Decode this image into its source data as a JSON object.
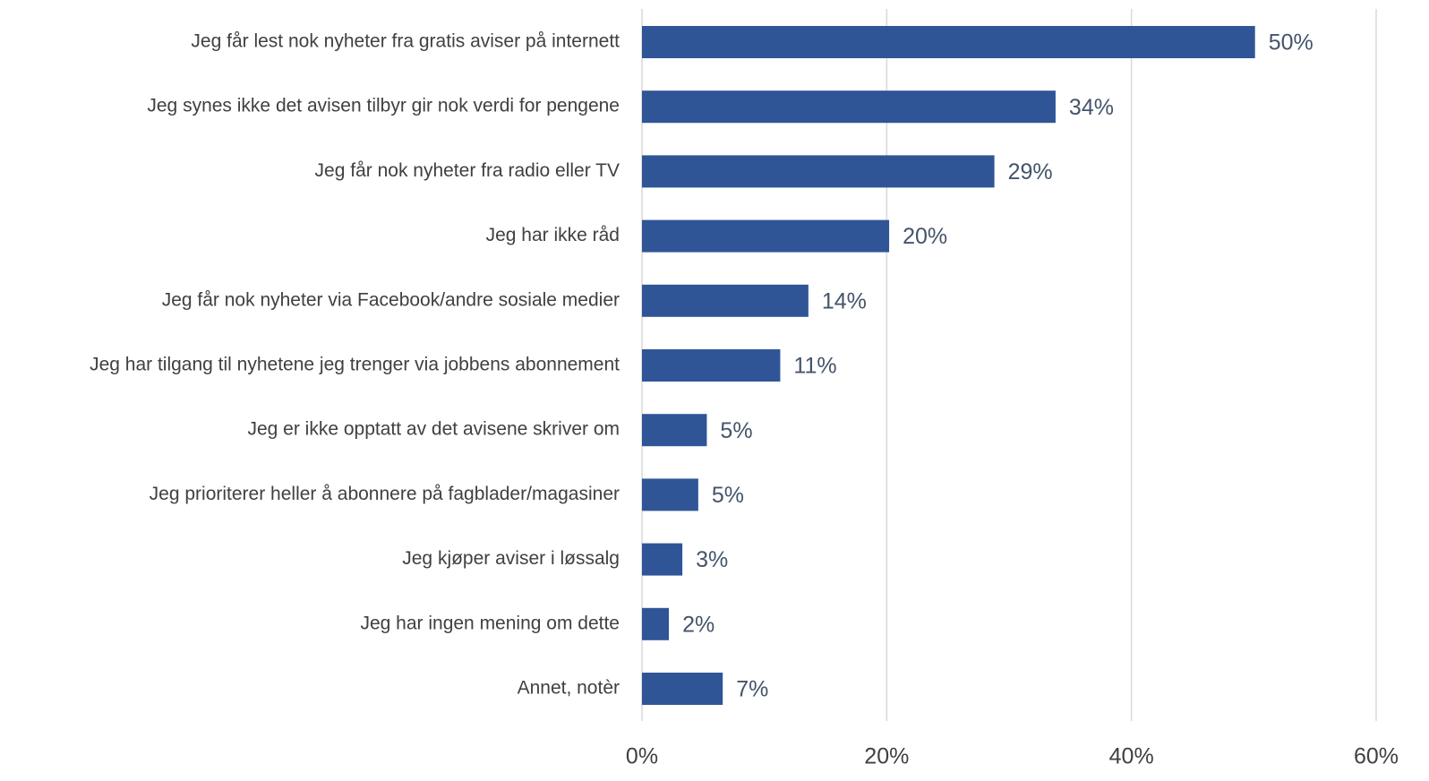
{
  "chart_data": {
    "type": "bar",
    "orientation": "horizontal",
    "categories": [
      "Jeg får lest nok nyheter fra gratis aviser på internett",
      "Jeg synes ikke det avisen tilbyr gir nok verdi for pengene",
      "Jeg får nok nyheter fra radio eller TV",
      "Jeg har ikke råd",
      "Jeg får nok nyheter via Facebook/andre sosiale medier",
      "Jeg har tilgang til nyhetene jeg trenger via jobbens abonnement",
      "Jeg er ikke opptatt av det avisene skriver om",
      "Jeg prioriterer heller å abonnere på fagblader/magasiner",
      "Jeg kjøper aviser i løssalg",
      "Jeg har ingen mening om dette",
      "Annet, notèr"
    ],
    "values": [
      50.1,
      33.8,
      28.8,
      20.2,
      13.6,
      11.3,
      5.3,
      4.6,
      3.3,
      2.2,
      6.6
    ],
    "value_labels": [
      "50%",
      "34%",
      "29%",
      "20%",
      "14%",
      "11%",
      "5%",
      "5%",
      "3%",
      "2%",
      "7%"
    ],
    "color": "#2f5597",
    "xlim": [
      0,
      60
    ],
    "xticks": [
      {
        "value": 0,
        "label": "0%"
      },
      {
        "value": 20,
        "label": "20%"
      },
      {
        "value": 40,
        "label": "40%"
      },
      {
        "value": 60,
        "label": "60%"
      }
    ],
    "grid": true
  }
}
